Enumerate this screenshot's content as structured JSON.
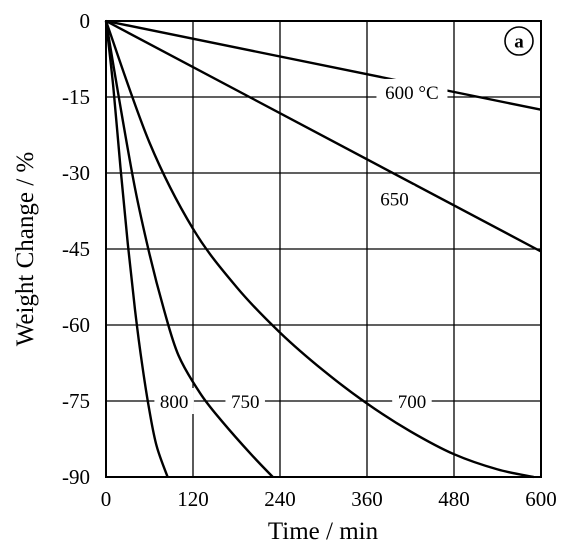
{
  "chart_data": {
    "type": "line",
    "panel_label": "a",
    "xlabel": "Time / min",
    "ylabel": "Weight Change / %",
    "xlim": [
      0,
      600
    ],
    "ylim": [
      -90,
      0
    ],
    "xticks": [
      0,
      120,
      240,
      360,
      480,
      600
    ],
    "yticks": [
      0,
      -15,
      -30,
      -45,
      -60,
      -75,
      -90
    ],
    "grid": true,
    "series": [
      {
        "name": "600 °C",
        "x": [
          0,
          600
        ],
        "y": [
          0,
          -17.5
        ]
      },
      {
        "name": "650",
        "x": [
          0,
          600
        ],
        "y": [
          0,
          -45.5
        ]
      },
      {
        "name": "700",
        "x": [
          0,
          60,
          120,
          180,
          240,
          300,
          360,
          420,
          480,
          540,
          590
        ],
        "y": [
          0,
          -24,
          -41,
          -52.5,
          -61.5,
          -69,
          -75.5,
          -81,
          -85.5,
          -88.5,
          -90
        ]
      },
      {
        "name": "750",
        "x": [
          0,
          20,
          40,
          60,
          80,
          100,
          130,
          160,
          200,
          230
        ],
        "y": [
          0,
          -17,
          -33,
          -46,
          -57,
          -66,
          -73.5,
          -79,
          -85.5,
          -90
        ]
      },
      {
        "name": "800",
        "x": [
          0,
          10,
          20,
          30,
          40,
          50,
          60,
          70,
          85
        ],
        "y": [
          0,
          -13,
          -29,
          -44,
          -57,
          -68,
          -77,
          -84,
          -90
        ]
      }
    ],
    "annotations": [
      {
        "text": "600 °C",
        "x": 422,
        "y": -14
      },
      {
        "text": "650",
        "x": 398,
        "y": -35
      },
      {
        "text": "700",
        "x": 422,
        "y": -75
      },
      {
        "text": "750",
        "x": 192,
        "y": -75
      },
      {
        "text": "800",
        "x": 94,
        "y": -75
      }
    ]
  }
}
